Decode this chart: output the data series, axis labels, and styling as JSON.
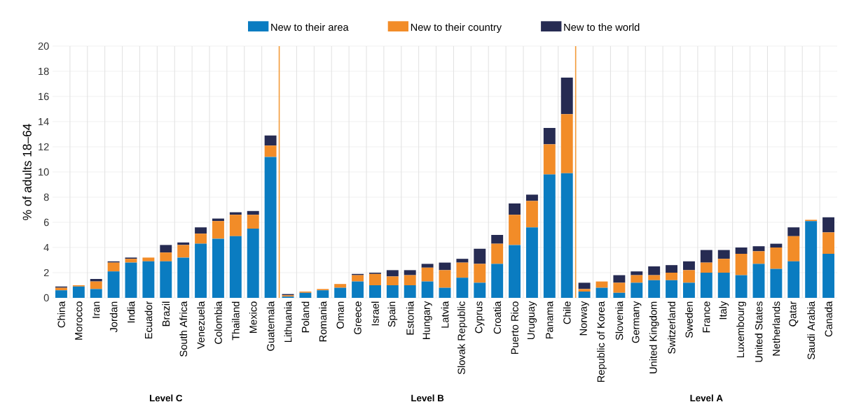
{
  "chart_data": {
    "type": "bar",
    "stacked": true,
    "ylabel": "% of adults 18–64",
    "categories": [
      "China",
      "Morocco",
      "Iran",
      "Jordan",
      "India",
      "Ecuador",
      "Brazil",
      "South Africa",
      "Venezuela",
      "Colombia",
      "Thailand",
      "Mexico",
      "Guatemala",
      "Lithuania",
      "Poland",
      "Romania",
      "Oman",
      "Greece",
      "Israel",
      "Spain",
      "Estonia",
      "Hungary",
      "Latvia",
      "Slovak Republic",
      "Cyprus",
      "Croatia",
      "Puerto Rico",
      "Uruguay",
      "Panama",
      "Chile",
      "Norway",
      "Republic of Korea",
      "Slovenia",
      "Germany",
      "United Kingdom",
      "Switzerland",
      "Sweden",
      "France",
      "Italy",
      "Luxembourg",
      "United States",
      "Netherlands",
      "Qatar",
      "Saudi Arabia",
      "Canada"
    ],
    "series": [
      {
        "name": "New to their area",
        "color": "#0a7cc1",
        "values": [
          0.6,
          0.9,
          0.7,
          2.1,
          2.8,
          2.9,
          2.9,
          3.2,
          4.3,
          4.7,
          4.9,
          5.5,
          11.2,
          0.1,
          0.4,
          0.6,
          0.8,
          1.3,
          1.0,
          1.0,
          1.0,
          1.3,
          0.8,
          1.6,
          1.2,
          2.7,
          4.2,
          5.6,
          9.8,
          9.9,
          0.5,
          0.8,
          0.4,
          1.2,
          1.4,
          1.4,
          1.2,
          2.0,
          2.0,
          1.8,
          2.7,
          2.3,
          2.9,
          6.1,
          3.5
        ]
      },
      {
        "name": "New to their country",
        "color": "#f28c28",
        "values": [
          0.2,
          0.1,
          0.6,
          0.7,
          0.3,
          0.3,
          0.7,
          1.0,
          0.8,
          1.4,
          1.7,
          1.1,
          0.9,
          0.1,
          0.1,
          0.1,
          0.3,
          0.5,
          0.9,
          0.7,
          0.8,
          1.1,
          1.4,
          1.2,
          1.5,
          1.6,
          2.4,
          2.1,
          2.4,
          4.7,
          0.2,
          0.5,
          0.8,
          0.6,
          0.4,
          0.6,
          1.0,
          0.8,
          1.1,
          1.7,
          1.0,
          1.7,
          2.0,
          0.1,
          1.7
        ]
      },
      {
        "name": "New to the world",
        "color": "#262b52",
        "values": [
          0.1,
          0,
          0.2,
          0.1,
          0.1,
          0,
          0.6,
          0.2,
          0.5,
          0.2,
          0.2,
          0.3,
          0.8,
          0.1,
          0,
          0,
          0,
          0.1,
          0.1,
          0.5,
          0.4,
          0.3,
          0.6,
          0.3,
          1.2,
          0.7,
          0.9,
          0.5,
          1.3,
          2.9,
          0.5,
          0,
          0.6,
          0.3,
          0.7,
          0.6,
          0.7,
          1.0,
          0.7,
          0.5,
          0.4,
          0.3,
          0.7,
          0,
          1.2
        ]
      }
    ],
    "ylim": [
      0,
      20
    ],
    "yticks": [
      0,
      2,
      4,
      6,
      8,
      10,
      12,
      14,
      16,
      18,
      20
    ],
    "grid": true,
    "legend": "top",
    "annotations": [
      "Level C",
      "Level B",
      "Level A"
    ]
  }
}
